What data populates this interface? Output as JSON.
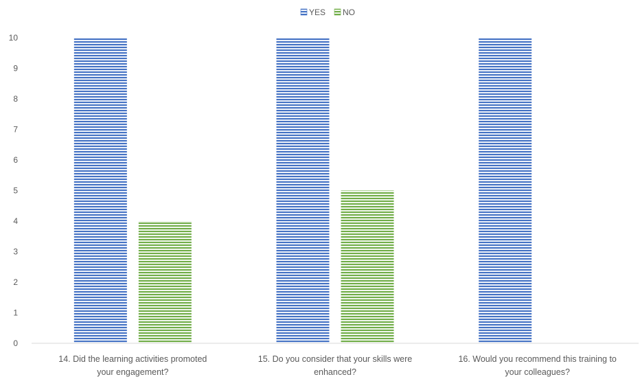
{
  "chart_data": {
    "type": "bar",
    "categories": [
      [
        "14. Did the learning activities promoted",
        "your engagement?"
      ],
      [
        "15. Do you consider that your skills were",
        "enhanced?"
      ],
      [
        "16. Would you recommend this training to",
        "your colleagues?"
      ]
    ],
    "series": [
      {
        "name": "YES",
        "values": [
          10,
          10,
          10
        ],
        "color": "#4472C4"
      },
      {
        "name": "NO",
        "values": [
          4,
          5,
          0
        ],
        "color": "#70AD47"
      }
    ],
    "ylim": [
      0,
      10
    ],
    "yticks": [
      0,
      1,
      2,
      3,
      4,
      5,
      6,
      7,
      8,
      9,
      10
    ],
    "grid": false,
    "legend": "top-center",
    "bar_pattern": "horizontal-stripes"
  }
}
